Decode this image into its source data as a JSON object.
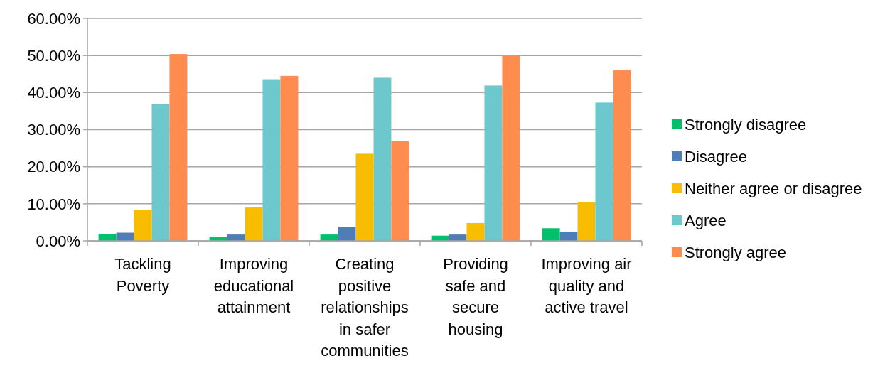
{
  "chart_data": {
    "type": "bar",
    "categories": [
      "Tackling Poverty",
      "Improving educational attainment",
      "Creating positive relationships in safer communities",
      "Providing safe and secure housing",
      "Improving air quality and active travel"
    ],
    "series": [
      {
        "name": "Strongly disagree",
        "color": "#00c06b",
        "values": [
          1.9,
          1.1,
          1.7,
          1.4,
          3.4
        ]
      },
      {
        "name": "Disagree",
        "color": "#4f7db8",
        "values": [
          2.2,
          1.7,
          3.7,
          1.7,
          2.5
        ]
      },
      {
        "name": "Neither agree or disagree",
        "color": "#f8bd00",
        "values": [
          8.3,
          9.0,
          23.5,
          4.8,
          10.4
        ]
      },
      {
        "name": "Agree",
        "color": "#6cc8cc",
        "values": [
          36.9,
          43.6,
          44.0,
          41.9,
          37.3
        ]
      },
      {
        "name": "Strongly agree",
        "color": "#ff8c4f",
        "values": [
          50.4,
          44.5,
          26.9,
          49.9,
          46.0
        ]
      }
    ],
    "ylim": [
      0,
      60
    ],
    "yticks": [
      {
        "value": 0,
        "label": "0.00%"
      },
      {
        "value": 10,
        "label": "10.00%"
      },
      {
        "value": 20,
        "label": "20.00%"
      },
      {
        "value": 30,
        "label": "30.00%"
      },
      {
        "value": 40,
        "label": "40.00%"
      },
      {
        "value": 50,
        "label": "50.00%"
      },
      {
        "value": 60,
        "label": "60.00%"
      }
    ],
    "grid": "y",
    "legend": "right"
  }
}
